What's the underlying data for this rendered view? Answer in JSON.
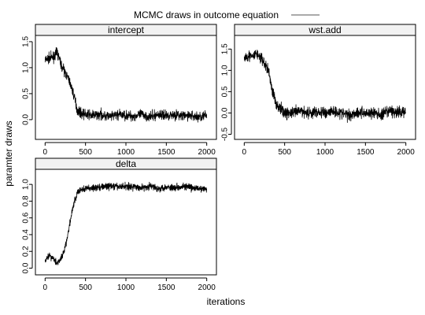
{
  "chart_data": {
    "type": "line",
    "title": "MCMC draws in outcome equation",
    "legend": {
      "placement": "top-center",
      "label": "",
      "line_color": "#555555"
    },
    "xlabel": "iterations",
    "ylabel": "paramter draws",
    "trace_color": "#000000",
    "panels": [
      {
        "name": "intercept",
        "xlim": [
          -120,
          2120
        ],
        "ylim": [
          -0.38,
          1.62
        ],
        "xticks": [
          0,
          500,
          1000,
          1500,
          2000
        ],
        "xtick_labels": [
          "0",
          "500",
          "1000",
          "1500",
          "2000"
        ],
        "yticks": [
          0.0,
          0.5,
          1.0,
          1.5
        ],
        "ytick_labels": [
          "0.0",
          "0.5",
          "1.0",
          "1.5"
        ],
        "series": [
          {
            "x": [
              0,
              50,
              100,
              150,
              200,
              250,
              300,
              350,
              400,
              450,
              500,
              600,
              700,
              800,
              900,
              1000,
              1100,
              1200,
              1300,
              1400,
              1500,
              1600,
              1700,
              1800,
              1900,
              2000
            ],
            "y": [
              1.15,
              1.18,
              1.2,
              1.3,
              1.05,
              0.9,
              0.75,
              0.5,
              0.18,
              0.12,
              0.1,
              0.08,
              0.1,
              0.05,
              0.1,
              0.08,
              0.07,
              0.1,
              0.05,
              0.1,
              0.08,
              0.1,
              0.07,
              0.08,
              0.05,
              0.08
            ],
            "noise": 0.09
          }
        ]
      },
      {
        "name": "wst.add",
        "xlim": [
          -120,
          2120
        ],
        "ylim": [
          -0.62,
          1.82
        ],
        "xticks": [
          0,
          500,
          1000,
          1500,
          2000
        ],
        "xtick_labels": [
          "0",
          "500",
          "1000",
          "1500",
          "2000"
        ],
        "yticks": [
          -0.5,
          0.0,
          0.5,
          1.0,
          1.5
        ],
        "ytick_labels": [
          "-0.5",
          "0.0",
          "0.5",
          "1.0",
          "1.5"
        ],
        "series": [
          {
            "x": [
              0,
              50,
              100,
              150,
              200,
              250,
              300,
              350,
              400,
              450,
              500,
              600,
              700,
              800,
              900,
              1000,
              1100,
              1200,
              1300,
              1400,
              1500,
              1600,
              1700,
              1800,
              1900,
              2000
            ],
            "y": [
              1.3,
              1.35,
              1.3,
              1.4,
              1.3,
              1.15,
              1.0,
              0.5,
              0.2,
              0.1,
              0.0,
              0.0,
              0.05,
              0.0,
              0.02,
              0.0,
              0.05,
              0.0,
              -0.05,
              0.02,
              0.0,
              0.0,
              -0.05,
              0.05,
              0.0,
              0.05
            ],
            "noise": 0.13
          }
        ]
      },
      {
        "name": "delta",
        "xlim": [
          -120,
          2120
        ],
        "ylim": [
          -0.08,
          1.18
        ],
        "xticks": [
          0,
          500,
          1000,
          1500,
          2000
        ],
        "xtick_labels": [
          "0",
          "500",
          "1000",
          "1500",
          "2000"
        ],
        "yticks": [
          0.0,
          0.2,
          0.4,
          0.6,
          0.8,
          1.0
        ],
        "ytick_labels": [
          "0.0",
          "0.2",
          "0.4",
          "0.6",
          "0.8",
          "1.0"
        ],
        "series": [
          {
            "x": [
              0,
              50,
              100,
              150,
              200,
              250,
              300,
              350,
              400,
              450,
              500,
              600,
              700,
              800,
              900,
              1000,
              1100,
              1200,
              1300,
              1400,
              1500,
              1600,
              1700,
              1800,
              1900,
              2000
            ],
            "y": [
              0.1,
              0.15,
              0.12,
              0.06,
              0.12,
              0.25,
              0.5,
              0.75,
              0.9,
              0.94,
              0.95,
              0.96,
              0.97,
              0.98,
              0.97,
              0.98,
              0.97,
              0.96,
              0.98,
              0.95,
              0.97,
              0.96,
              0.98,
              0.96,
              0.95,
              0.94
            ],
            "noise": 0.04
          }
        ]
      }
    ]
  }
}
